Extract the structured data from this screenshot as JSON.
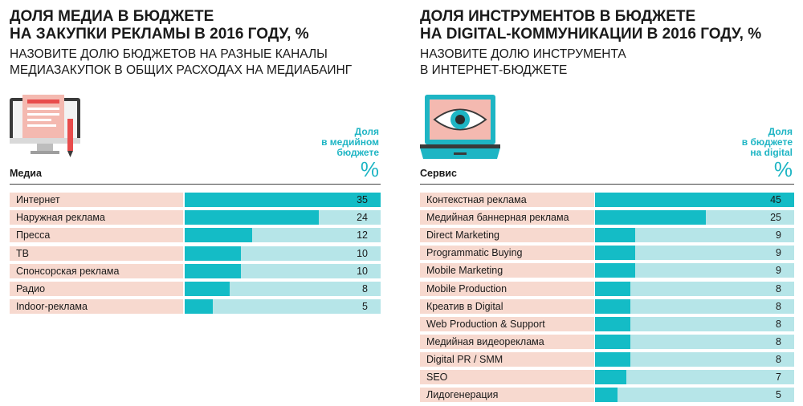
{
  "chart_data": [
    {
      "type": "bar",
      "orientation": "horizontal",
      "title_line1": "ДОЛЯ МЕДИА В БЮДЖЕТЕ",
      "title_line2": "НА ЗАКУПКИ РЕКЛАМЫ В 2016 ГОДУ, %",
      "subtitle_line1": "НАЗОВИТЕ ДОЛЮ БЮДЖЕТОВ НА РАЗНЫЕ КАНАЛЫ",
      "subtitle_line2": "МЕДИАЗАКУПОК В ОБЩИХ РАСХОДАХ НА МЕДИАБАИНГ",
      "category_header": "Медиа",
      "value_header_lines": [
        "Доля",
        "в медийном",
        "бюджете"
      ],
      "unit": "%",
      "xlim": [
        0,
        35
      ],
      "categories": [
        "Интернет",
        "Наружная реклама",
        "Пресса",
        "ТВ",
        "Спонсорская реклама",
        "Радио",
        "Indoor-реклама"
      ],
      "values": [
        35,
        24,
        12,
        10,
        10,
        8,
        5
      ],
      "icon": "monitor-document-icon",
      "colors": {
        "label_bg": "#f7d9cf",
        "track": "#b6e5e8",
        "fill": "#14bcc6",
        "accent": "#1eb5c4"
      }
    },
    {
      "type": "bar",
      "orientation": "horizontal",
      "title_line1": "ДОЛЯ ИНСТРУМЕНТОВ В БЮДЖЕТЕ",
      "title_line2": "НА DIGITAL-КОММУНИКАЦИИ В 2016 ГОДУ, %",
      "subtitle_line1": "НАЗОВИТЕ ДОЛЮ ИНСТРУМЕНТА",
      "subtitle_line2": "В ИНТЕРНЕТ-БЮДЖЕТЕ",
      "category_header": "Сервис",
      "value_header_lines": [
        "Доля",
        "в бюджете",
        "на digital"
      ],
      "unit": "%",
      "xlim": [
        0,
        45
      ],
      "categories": [
        "Контекстная реклама",
        "Медийная баннерная реклама",
        "Direct Marketing",
        "Programmatic Buying",
        "Mobile Marketing",
        "Mobile Production",
        "Креатив в Digital",
        "Web Production & Support",
        "Медийная видеореклама",
        "Digital PR / SMM",
        "SEO",
        "Лидогенерация"
      ],
      "values": [
        45,
        25,
        9,
        9,
        9,
        8,
        8,
        8,
        8,
        8,
        7,
        5
      ],
      "icon": "laptop-eye-icon",
      "colors": {
        "label_bg": "#f7d9cf",
        "track": "#b6e5e8",
        "fill": "#14bcc6",
        "accent": "#1eb5c4"
      }
    }
  ]
}
